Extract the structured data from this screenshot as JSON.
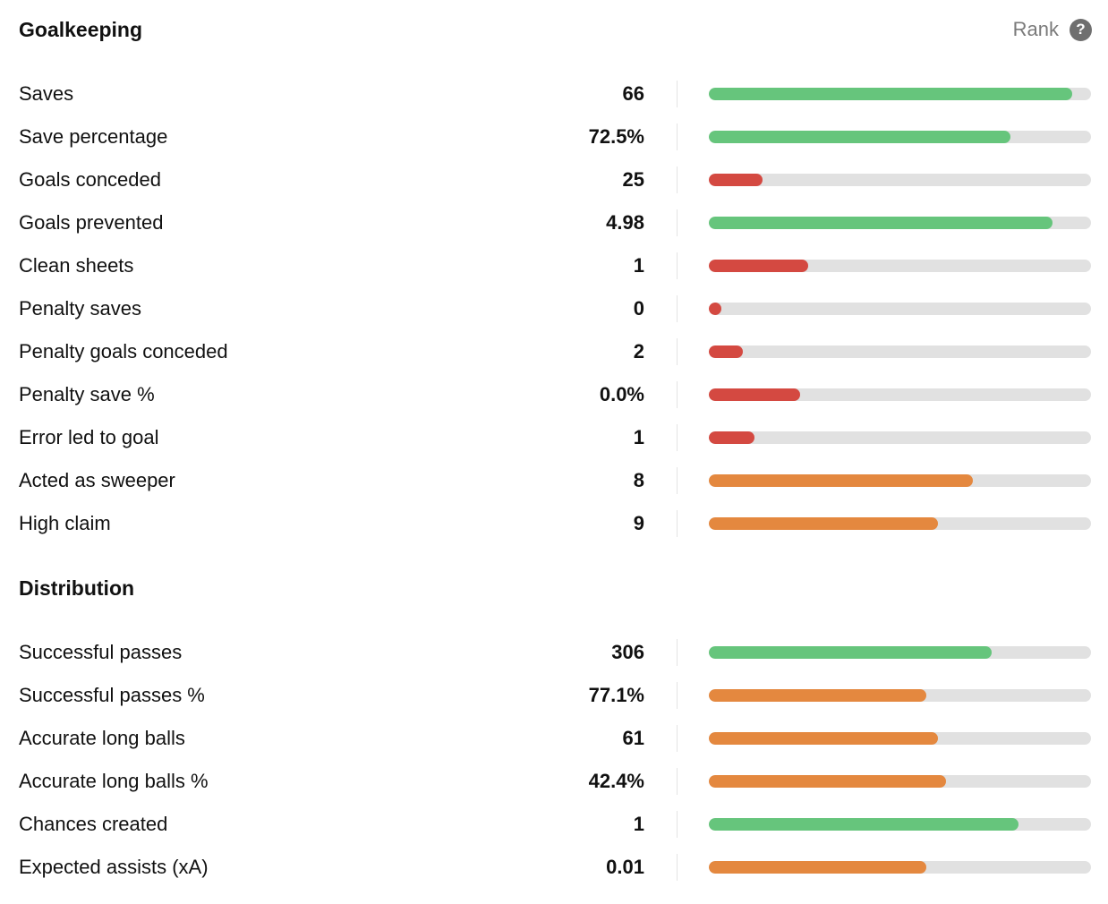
{
  "colors": {
    "high": "#66c57c",
    "mid": "#e4883f",
    "low": "#d44941",
    "track": "#e1e1e1"
  },
  "header": {
    "rank_label": "Rank",
    "help_icon": "question-mark-icon",
    "help_glyph": "?"
  },
  "sections": [
    {
      "title": "Goalkeeping",
      "rows": [
        {
          "label": "Saves",
          "value": "66",
          "percentile": 0.95,
          "level": "high"
        },
        {
          "label": "Save percentage",
          "value": "72.5%",
          "percentile": 0.79,
          "level": "high"
        },
        {
          "label": "Goals conceded",
          "value": "25",
          "percentile": 0.14,
          "level": "low"
        },
        {
          "label": "Goals prevented",
          "value": "4.98",
          "percentile": 0.9,
          "level": "high"
        },
        {
          "label": "Clean sheets",
          "value": "1",
          "percentile": 0.26,
          "level": "low"
        },
        {
          "label": "Penalty saves",
          "value": "0",
          "percentile": 0.03,
          "level": "low"
        },
        {
          "label": "Penalty goals conceded",
          "value": "2",
          "percentile": 0.09,
          "level": "low"
        },
        {
          "label": "Penalty save %",
          "value": "0.0%",
          "percentile": 0.24,
          "level": "low"
        },
        {
          "label": "Error led to goal",
          "value": "1",
          "percentile": 0.12,
          "level": "low"
        },
        {
          "label": "Acted as sweeper",
          "value": "8",
          "percentile": 0.69,
          "level": "mid"
        },
        {
          "label": "High claim",
          "value": "9",
          "percentile": 0.6,
          "level": "mid"
        }
      ]
    },
    {
      "title": "Distribution",
      "rows": [
        {
          "label": "Successful passes",
          "value": "306",
          "percentile": 0.74,
          "level": "high"
        },
        {
          "label": "Successful passes %",
          "value": "77.1%",
          "percentile": 0.57,
          "level": "mid"
        },
        {
          "label": "Accurate long balls",
          "value": "61",
          "percentile": 0.6,
          "level": "mid"
        },
        {
          "label": "Accurate long balls %",
          "value": "42.4%",
          "percentile": 0.62,
          "level": "mid"
        },
        {
          "label": "Chances created",
          "value": "1",
          "percentile": 0.81,
          "level": "high"
        },
        {
          "label": "Expected assists (xA)",
          "value": "0.01",
          "percentile": 0.57,
          "level": "mid"
        }
      ]
    }
  ]
}
